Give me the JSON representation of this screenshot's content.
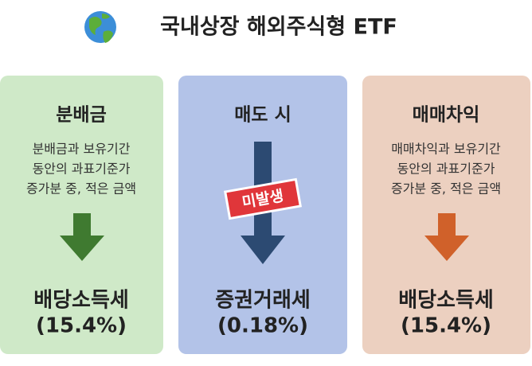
{
  "header": {
    "title": "국내상장 해외주식형 ETF"
  },
  "cards": [
    {
      "heading": "분배금",
      "description": [
        "분배금과 보유기간",
        "동안의 과표기준가",
        "증가분 중, 적은 금액"
      ],
      "result": "배당소득세",
      "rate": "(15.4%)"
    },
    {
      "heading": "매도 시",
      "stamp": "미발생",
      "result": "증권거래세",
      "rate": "(0.18%)"
    },
    {
      "heading": "매매차익",
      "description": [
        "매매차익과 보유기간",
        "동안의 과표기준가",
        "증가분 중, 적은 금액"
      ],
      "result": "배당소득세",
      "rate": "(15.4%)"
    }
  ]
}
